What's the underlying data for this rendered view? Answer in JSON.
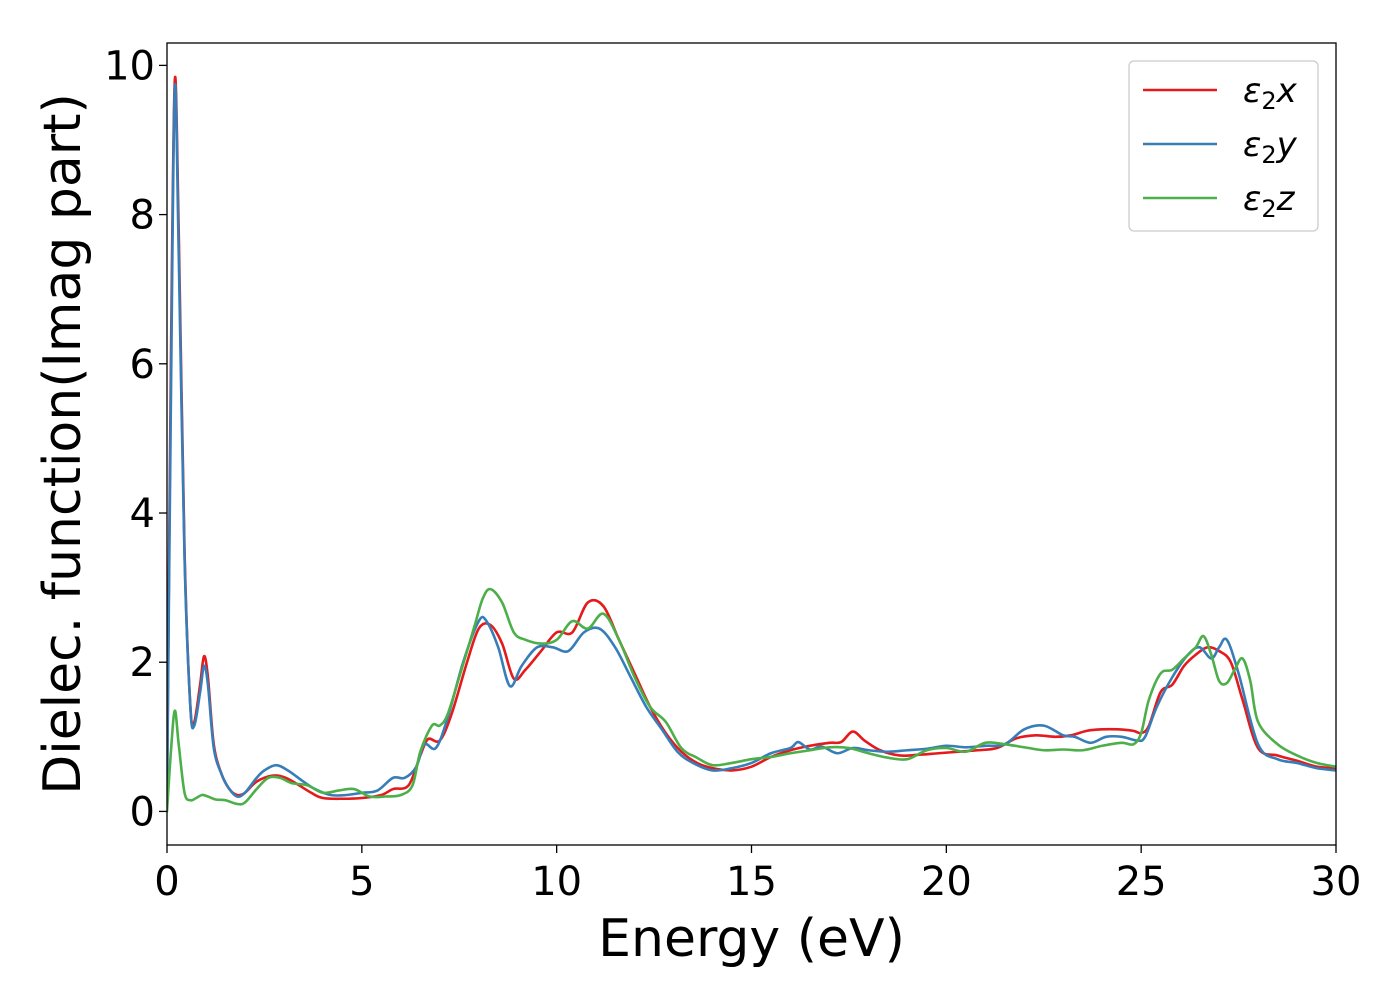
{
  "chart_data": {
    "type": "line",
    "title": "",
    "xlabel": "Energy (eV)",
    "ylabel": "Dielec. function(Imag part)",
    "xlim": [
      0,
      30
    ],
    "ylim": [
      -0.45,
      10.3
    ],
    "xticks": [
      0,
      5,
      10,
      15,
      20,
      25,
      30
    ],
    "yticks": [
      0,
      2,
      4,
      6,
      8,
      10
    ],
    "grid": false,
    "legend_position": "top-right",
    "series": [
      {
        "name": "ε2x",
        "legend": {
          "base": "ε",
          "sub": "2",
          "var": "x"
        },
        "color": "#e41a1c",
        "x": [
          0,
          0.1,
          0.2,
          0.3,
          0.45,
          0.6,
          0.7,
          0.85,
          0.95,
          1.05,
          1.2,
          1.4,
          1.6,
          1.8,
          2.0,
          2.3,
          2.7,
          3.0,
          3.3,
          3.7,
          4.0,
          4.5,
          5.0,
          5.5,
          5.8,
          6.2,
          6.5,
          6.7,
          7.0,
          7.3,
          7.7,
          8.0,
          8.3,
          8.6,
          8.9,
          9.2,
          9.6,
          10.0,
          10.4,
          10.8,
          11.2,
          11.6,
          12.0,
          12.4,
          12.8,
          13.2,
          13.6,
          14.0,
          14.5,
          15.0,
          15.5,
          16.0,
          16.5,
          17.0,
          17.3,
          17.6,
          17.9,
          18.3,
          18.8,
          19.3,
          19.8,
          20.3,
          20.8,
          21.3,
          21.8,
          22.3,
          22.8,
          23.2,
          23.6,
          24.0,
          24.4,
          24.8,
          25.0,
          25.2,
          25.5,
          25.8,
          26.1,
          26.4,
          26.7,
          27.0,
          27.3,
          27.6,
          28.0,
          28.5,
          29.0,
          29.5,
          30.0
        ],
        "y": [
          0.1,
          6.0,
          9.8,
          7.8,
          3.5,
          1.4,
          1.2,
          1.7,
          2.08,
          1.8,
          0.9,
          0.5,
          0.3,
          0.22,
          0.25,
          0.4,
          0.48,
          0.46,
          0.38,
          0.25,
          0.18,
          0.17,
          0.18,
          0.22,
          0.3,
          0.35,
          0.75,
          0.97,
          0.95,
          1.3,
          2.0,
          2.45,
          2.5,
          2.25,
          1.78,
          1.9,
          2.15,
          2.4,
          2.4,
          2.8,
          2.75,
          2.3,
          1.85,
          1.4,
          1.05,
          0.8,
          0.65,
          0.58,
          0.55,
          0.6,
          0.73,
          0.82,
          0.88,
          0.92,
          0.93,
          1.07,
          0.95,
          0.82,
          0.75,
          0.76,
          0.78,
          0.8,
          0.82,
          0.85,
          0.98,
          1.02,
          1.0,
          1.02,
          1.08,
          1.1,
          1.1,
          1.08,
          1.05,
          1.15,
          1.6,
          1.7,
          1.95,
          2.1,
          2.2,
          2.15,
          2.0,
          1.5,
          0.85,
          0.75,
          0.68,
          0.6,
          0.58
        ]
      },
      {
        "name": "ε2y",
        "legend": {
          "base": "ε",
          "sub": "2",
          "var": "y"
        },
        "color": "#377eb8",
        "x": [
          0,
          0.1,
          0.2,
          0.3,
          0.45,
          0.6,
          0.7,
          0.85,
          0.95,
          1.05,
          1.2,
          1.4,
          1.6,
          1.8,
          2.0,
          2.3,
          2.5,
          2.8,
          3.1,
          3.5,
          3.8,
          4.2,
          4.6,
          5.0,
          5.4,
          5.8,
          6.1,
          6.4,
          6.6,
          6.9,
          7.2,
          7.6,
          8.0,
          8.2,
          8.5,
          8.8,
          9.1,
          9.5,
          9.9,
          10.3,
          10.7,
          11.1,
          11.5,
          11.9,
          12.3,
          12.7,
          13.1,
          13.5,
          14.0,
          14.5,
          15.0,
          15.5,
          16.0,
          16.2,
          16.5,
          16.8,
          17.2,
          17.6,
          18.0,
          18.5,
          19.0,
          19.5,
          20.0,
          20.5,
          21.0,
          21.5,
          22.0,
          22.5,
          23.0,
          23.3,
          23.7,
          24.1,
          24.5,
          24.9,
          25.1,
          25.4,
          25.8,
          26.2,
          26.5,
          26.8,
          27.0,
          27.2,
          27.5,
          28.0,
          28.5,
          29.0,
          29.5,
          30.0
        ],
        "y": [
          0.1,
          5.5,
          9.7,
          7.5,
          3.4,
          1.4,
          1.15,
          1.6,
          1.95,
          1.7,
          0.85,
          0.5,
          0.3,
          0.2,
          0.25,
          0.45,
          0.55,
          0.62,
          0.55,
          0.4,
          0.3,
          0.22,
          0.22,
          0.25,
          0.28,
          0.45,
          0.45,
          0.6,
          0.9,
          0.85,
          1.25,
          2.0,
          2.55,
          2.55,
          2.2,
          1.68,
          1.95,
          2.2,
          2.2,
          2.15,
          2.4,
          2.45,
          2.2,
          1.8,
          1.4,
          1.1,
          0.8,
          0.65,
          0.55,
          0.58,
          0.65,
          0.78,
          0.85,
          0.93,
          0.83,
          0.87,
          0.78,
          0.85,
          0.82,
          0.8,
          0.82,
          0.84,
          0.88,
          0.86,
          0.88,
          0.9,
          1.1,
          1.15,
          1.02,
          1.0,
          0.92,
          1.0,
          1.0,
          0.95,
          1.0,
          1.4,
          1.8,
          2.1,
          2.2,
          2.05,
          2.2,
          2.3,
          1.85,
          0.9,
          0.7,
          0.65,
          0.58,
          0.55
        ]
      },
      {
        "name": "ε2z",
        "legend": {
          "base": "ε",
          "sub": "2",
          "var": "z"
        },
        "color": "#4daf4a",
        "x": [
          0,
          0.1,
          0.2,
          0.3,
          0.45,
          0.6,
          0.75,
          0.9,
          1.05,
          1.25,
          1.5,
          1.8,
          2.0,
          2.3,
          2.6,
          2.9,
          3.2,
          3.6,
          4.0,
          4.4,
          4.8,
          5.2,
          5.6,
          6.0,
          6.3,
          6.5,
          6.8,
          7.0,
          7.2,
          7.5,
          7.9,
          8.1,
          8.3,
          8.6,
          8.9,
          9.2,
          9.6,
          10.0,
          10.4,
          10.8,
          11.2,
          11.6,
          12.0,
          12.4,
          12.8,
          13.2,
          13.6,
          14.0,
          14.5,
          15.0,
          15.5,
          16.0,
          16.5,
          17.0,
          17.5,
          18.0,
          18.5,
          19.0,
          19.5,
          20.0,
          20.5,
          21.0,
          21.5,
          22.0,
          22.5,
          23.0,
          23.5,
          24.0,
          24.5,
          24.8,
          25.0,
          25.2,
          25.5,
          25.8,
          26.1,
          26.4,
          26.6,
          26.8,
          27.0,
          27.2,
          27.4,
          27.6,
          27.8,
          28.0,
          28.5,
          29.0,
          29.5,
          30.0
        ],
        "y": [
          0.0,
          0.8,
          1.35,
          0.9,
          0.25,
          0.15,
          0.18,
          0.22,
          0.2,
          0.16,
          0.15,
          0.1,
          0.12,
          0.3,
          0.45,
          0.45,
          0.38,
          0.35,
          0.25,
          0.28,
          0.3,
          0.2,
          0.2,
          0.22,
          0.35,
          0.8,
          1.15,
          1.15,
          1.3,
          1.8,
          2.5,
          2.85,
          2.98,
          2.8,
          2.4,
          2.3,
          2.25,
          2.3,
          2.55,
          2.45,
          2.65,
          2.3,
          1.8,
          1.4,
          1.2,
          0.85,
          0.72,
          0.62,
          0.65,
          0.7,
          0.73,
          0.78,
          0.82,
          0.86,
          0.85,
          0.78,
          0.72,
          0.7,
          0.82,
          0.85,
          0.8,
          0.92,
          0.9,
          0.86,
          0.82,
          0.83,
          0.82,
          0.88,
          0.92,
          0.9,
          1.05,
          1.5,
          1.85,
          1.9,
          2.05,
          2.2,
          2.35,
          2.1,
          1.75,
          1.72,
          1.9,
          2.05,
          1.75,
          1.2,
          0.9,
          0.75,
          0.65,
          0.6
        ]
      }
    ]
  }
}
